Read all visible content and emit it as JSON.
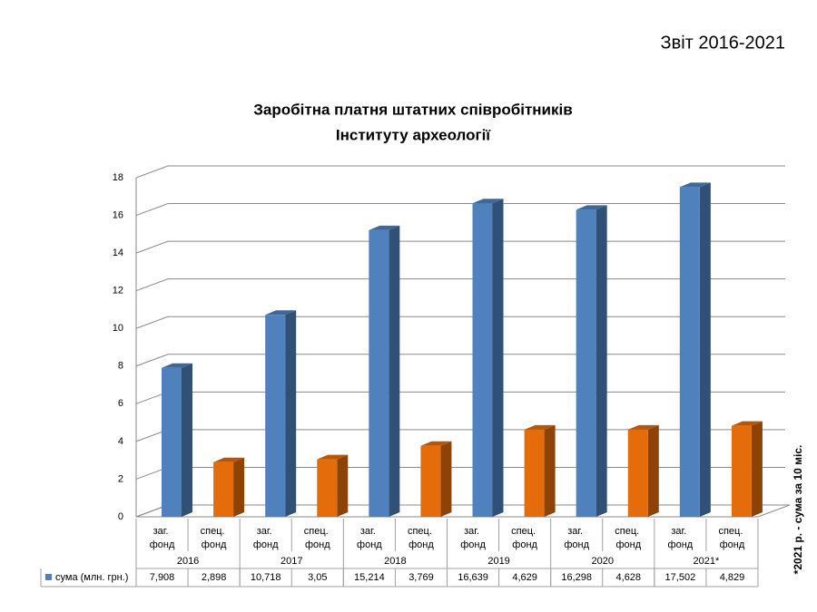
{
  "header": "Звіт 2016-2021",
  "chart_data": {
    "type": "bar",
    "title": [
      "Заробітна платня штатних співробітників",
      "Інституту археології"
    ],
    "categories": [
      "заг. фонд",
      "спец. фонд",
      "заг. фонд",
      "спец. фонд",
      "заг. фонд",
      "спец. фонд",
      "заг. фонд",
      "спец. фонд",
      "заг. фонд",
      "спец. фонд",
      "заг. фонд",
      "спец. фонд"
    ],
    "groups": [
      "2016",
      "2017",
      "2018",
      "2019",
      "2020",
      "2021*"
    ],
    "series": [
      {
        "name": "сума (млн. грн.)",
        "colors": [
          "#4f81bd",
          "#e46c0a",
          "#4f81bd",
          "#e46c0a",
          "#4f81bd",
          "#e46c0a",
          "#4f81bd",
          "#e46c0a",
          "#4f81bd",
          "#e46c0a",
          "#4f81bd",
          "#e46c0a"
        ],
        "values": [
          7.908,
          2.898,
          10.718,
          3.05,
          15.214,
          3.769,
          16.639,
          4.629,
          16.298,
          4.628,
          17.502,
          4.829
        ],
        "value_labels": [
          "7,908",
          "2,898",
          "10,718",
          "3,05",
          "15,214",
          "3,769",
          "16,639",
          "4,629",
          "16,298",
          "4,628",
          "17,502",
          "4,829"
        ]
      }
    ],
    "ylim": [
      0,
      18
    ],
    "yticks": [
      0,
      2,
      4,
      6,
      8,
      10,
      12,
      14,
      16,
      18
    ],
    "grid": true,
    "annotation": "*2021 р. - сума за 10 міс."
  }
}
